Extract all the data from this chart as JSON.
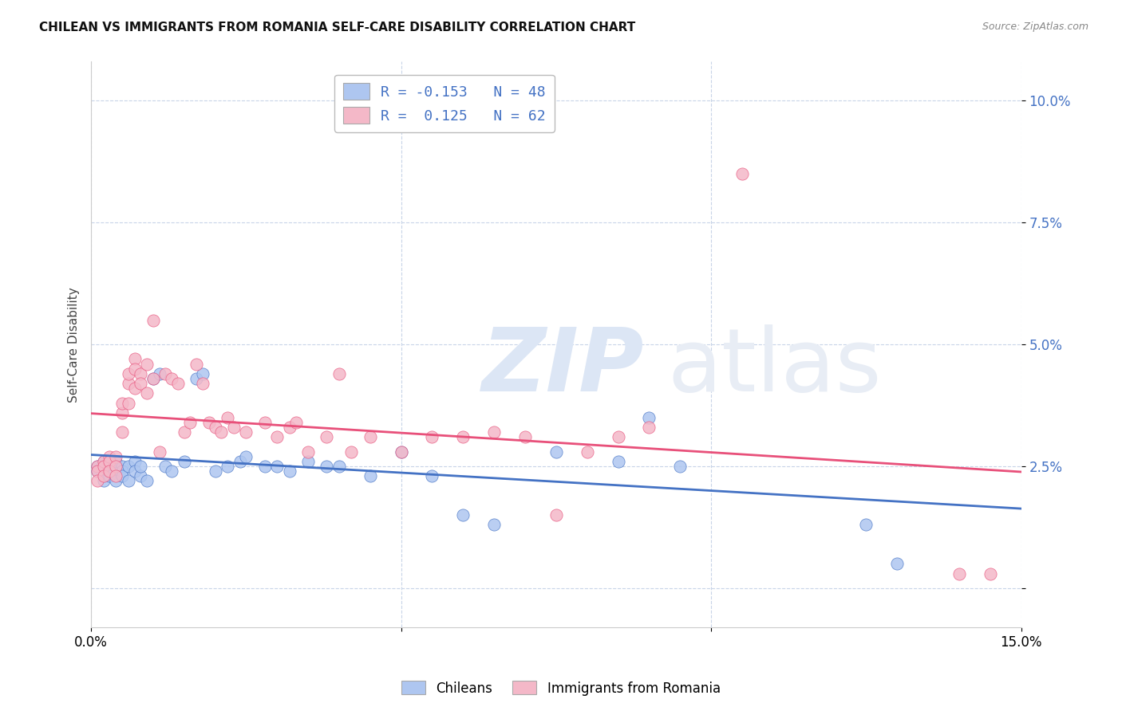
{
  "title": "CHILEAN VS IMMIGRANTS FROM ROMANIA SELF-CARE DISABILITY CORRELATION CHART",
  "source": "Source: ZipAtlas.com",
  "ylabel": "Self-Care Disability",
  "xlim": [
    0.0,
    0.15
  ],
  "ylim": [
    -0.008,
    0.108
  ],
  "yticks": [
    0.0,
    0.025,
    0.05,
    0.075,
    0.1
  ],
  "xticks": [
    0.0,
    0.05,
    0.1,
    0.15
  ],
  "chilean_color": "#aec6f0",
  "romanian_color": "#f4b8c8",
  "chilean_line_color": "#4472c4",
  "romanian_line_color": "#e8507a",
  "chilean_R": -0.153,
  "chilean_N": 48,
  "romanian_R": 0.125,
  "romanian_N": 62,
  "chilean_x": [
    0.001,
    0.001,
    0.002,
    0.002,
    0.002,
    0.003,
    0.003,
    0.003,
    0.004,
    0.004,
    0.005,
    0.005,
    0.005,
    0.006,
    0.006,
    0.007,
    0.007,
    0.008,
    0.008,
    0.009,
    0.01,
    0.011,
    0.012,
    0.013,
    0.015,
    0.017,
    0.018,
    0.02,
    0.022,
    0.024,
    0.025,
    0.028,
    0.03,
    0.032,
    0.035,
    0.038,
    0.04,
    0.045,
    0.05,
    0.055,
    0.06,
    0.065,
    0.075,
    0.085,
    0.09,
    0.095,
    0.125,
    0.13
  ],
  "chilean_y": [
    0.025,
    0.024,
    0.026,
    0.023,
    0.022,
    0.025,
    0.024,
    0.023,
    0.026,
    0.022,
    0.025,
    0.024,
    0.023,
    0.025,
    0.022,
    0.026,
    0.024,
    0.023,
    0.025,
    0.022,
    0.043,
    0.044,
    0.025,
    0.024,
    0.026,
    0.043,
    0.044,
    0.024,
    0.025,
    0.026,
    0.027,
    0.025,
    0.025,
    0.024,
    0.026,
    0.025,
    0.025,
    0.023,
    0.028,
    0.023,
    0.015,
    0.013,
    0.028,
    0.026,
    0.035,
    0.025,
    0.013,
    0.005
  ],
  "romanian_x": [
    0.001,
    0.001,
    0.001,
    0.002,
    0.002,
    0.002,
    0.003,
    0.003,
    0.003,
    0.004,
    0.004,
    0.004,
    0.005,
    0.005,
    0.005,
    0.006,
    0.006,
    0.006,
    0.007,
    0.007,
    0.007,
    0.008,
    0.008,
    0.009,
    0.009,
    0.01,
    0.01,
    0.011,
    0.012,
    0.013,
    0.014,
    0.015,
    0.016,
    0.017,
    0.018,
    0.019,
    0.02,
    0.021,
    0.022,
    0.023,
    0.025,
    0.028,
    0.03,
    0.032,
    0.033,
    0.035,
    0.038,
    0.04,
    0.042,
    0.045,
    0.05,
    0.055,
    0.06,
    0.065,
    0.07,
    0.075,
    0.08,
    0.085,
    0.09,
    0.105,
    0.14,
    0.145
  ],
  "romanian_y": [
    0.025,
    0.024,
    0.022,
    0.026,
    0.025,
    0.023,
    0.027,
    0.026,
    0.024,
    0.027,
    0.025,
    0.023,
    0.036,
    0.038,
    0.032,
    0.042,
    0.044,
    0.038,
    0.047,
    0.045,
    0.041,
    0.044,
    0.042,
    0.046,
    0.04,
    0.043,
    0.055,
    0.028,
    0.044,
    0.043,
    0.042,
    0.032,
    0.034,
    0.046,
    0.042,
    0.034,
    0.033,
    0.032,
    0.035,
    0.033,
    0.032,
    0.034,
    0.031,
    0.033,
    0.034,
    0.028,
    0.031,
    0.044,
    0.028,
    0.031,
    0.028,
    0.031,
    0.031,
    0.032,
    0.031,
    0.015,
    0.028,
    0.031,
    0.033,
    0.085,
    0.003,
    0.003
  ]
}
